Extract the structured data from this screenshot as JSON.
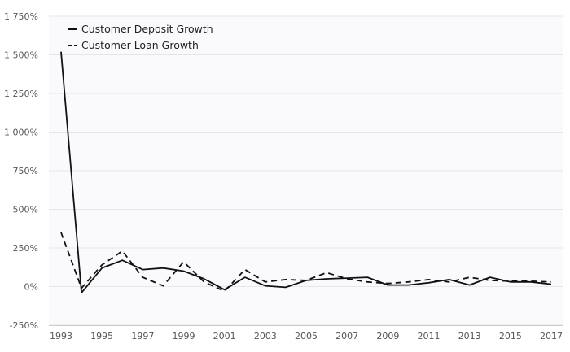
{
  "chart_data": {
    "type": "line",
    "title": "",
    "xlabel": "",
    "ylabel": "",
    "x": [
      "1993",
      "1994",
      "1995",
      "1996",
      "1997",
      "1998",
      "1999",
      "2000",
      "2001",
      "2002",
      "2003",
      "2004",
      "2005",
      "2006",
      "2007",
      "2008",
      "2009",
      "2010",
      "2011",
      "2012",
      "2013",
      "2014",
      "2015",
      "2016",
      "2017"
    ],
    "x_tick_labels": [
      "1993",
      "1995",
      "1997",
      "1999",
      "2001",
      "2003",
      "2005",
      "2007",
      "2009",
      "2011",
      "2013",
      "2015",
      "2017"
    ],
    "y_tick_labels": [
      "1 750%",
      "1 500%",
      "1 250%",
      "1 000%",
      "750%",
      "500%",
      "250%",
      "0%",
      "-250%"
    ],
    "ylim": [
      -250,
      1750
    ],
    "y_ticks": [
      1750,
      1500,
      1250,
      1000,
      750,
      500,
      250,
      0,
      -250
    ],
    "grid": "horizontal",
    "legend_position": "top-left",
    "series": [
      {
        "name": "Customer Deposit Growth",
        "line_style": "solid",
        "color": "#111111",
        "values": [
          1520,
          -40,
          120,
          170,
          110,
          120,
          100,
          50,
          -20,
          60,
          5,
          -5,
          40,
          50,
          55,
          60,
          10,
          10,
          25,
          45,
          10,
          60,
          30,
          30,
          15
        ]
      },
      {
        "name": "Customer Loan Growth",
        "line_style": "dashed",
        "color": "#111111",
        "values": [
          350,
          -10,
          140,
          230,
          60,
          5,
          160,
          30,
          -30,
          110,
          30,
          45,
          40,
          90,
          50,
          30,
          20,
          30,
          45,
          30,
          60,
          40,
          35,
          35,
          30
        ]
      }
    ]
  }
}
